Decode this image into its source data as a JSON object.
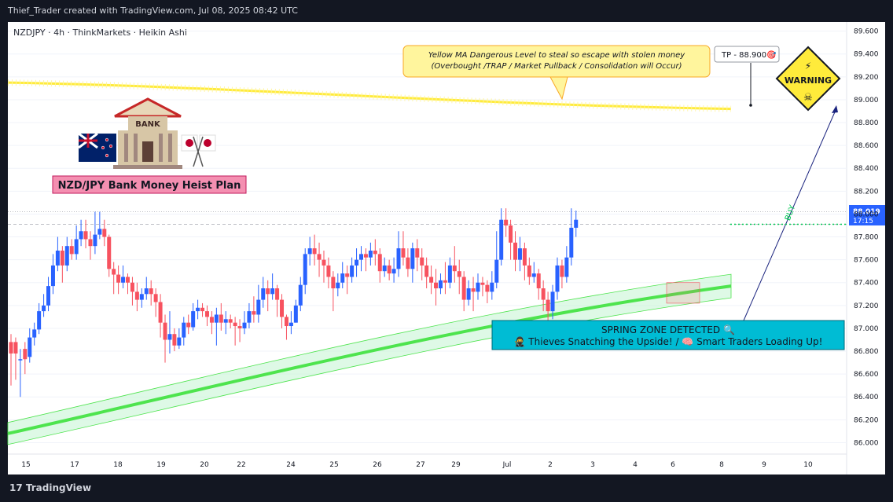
{
  "header": {
    "title": "Thief_Trader created with TradingView.com, Jul 08, 2025 08:42 UTC"
  },
  "footer": {
    "logo_text": "TradingView"
  },
  "chart_data": {
    "type": "candlestick",
    "symbol_line": "NZDJPY · 4h · ThinkMarkets · Heikin Ashi",
    "ylim": [
      85.9,
      89.68
    ],
    "y_ticks": [
      "89.600",
      "89.400",
      "89.200",
      "89.000",
      "88.800",
      "88.600",
      "88.400",
      "88.200",
      "88.000",
      "87.800",
      "87.600",
      "87.400",
      "87.200",
      "87.000",
      "86.800",
      "86.600",
      "86.400",
      "86.200",
      "86.000"
    ],
    "x_ticks": [
      "15",
      "17",
      "18",
      "19",
      "20",
      "22",
      "24",
      "25",
      "26",
      "27",
      "29",
      "Jul",
      "2",
      "3",
      "4",
      "6",
      "8",
      "9",
      "10"
    ],
    "last_price": "88.019",
    "countdown": "17:15",
    "tp_label": "TP - 88.900🎯",
    "tp_price": 88.9,
    "buy_label": "BUY",
    "buy_level": 87.91,
    "annotation": "Yellow MA Dangerous Level to steal so escape with stolen money",
    "annotation2": "(Overbought /TRAP / Market Pullback / Consolidation will Occur)",
    "plan_label": "NZD/JPY Bank Money Heist Plan",
    "bank_label": "BANK",
    "warning_label": "WARNING",
    "spring_line1": "SPRING ZONE DETECTED 🔍",
    "spring_line2": "🥷 Thieves Snatching the Upside! / 🧠 Smart Traders Loading Up!",
    "colors": {
      "up": "#2962ff",
      "down": "#f7525f",
      "ma": "#ffeb3b",
      "trend": "#4ee44e",
      "spring": "#00bcd4",
      "bg": "#ffffff"
    },
    "yellow_ma": {
      "start": 89.15,
      "end": 88.92
    },
    "green_ma": {
      "start": 86.08,
      "end": 87.37
    },
    "candles": [
      [
        86.88,
        86.78,
        86.95,
        86.5
      ],
      [
        86.88,
        86.78,
        86.92,
        86.55
      ],
      [
        86.72,
        86.73,
        86.82,
        86.4
      ],
      [
        86.82,
        86.73,
        86.88,
        86.6
      ],
      [
        86.75,
        86.92,
        87.0,
        86.7
      ],
      [
        86.92,
        86.99,
        87.05,
        86.85
      ],
      [
        86.99,
        87.15,
        87.22,
        86.95
      ],
      [
        87.15,
        87.2,
        87.3,
        87.1
      ],
      [
        87.2,
        87.37,
        87.45,
        87.15
      ],
      [
        87.37,
        87.55,
        87.65,
        87.3
      ],
      [
        87.55,
        87.68,
        87.8,
        87.5
      ],
      [
        87.68,
        87.55,
        87.72,
        87.4
      ],
      [
        87.55,
        87.72,
        87.8,
        87.5
      ],
      [
        87.72,
        87.65,
        87.78,
        87.6
      ],
      [
        87.65,
        87.78,
        87.9,
        87.6
      ],
      [
        87.78,
        87.85,
        87.95,
        87.72
      ],
      [
        87.85,
        87.78,
        87.95,
        87.7
      ],
      [
        87.78,
        87.72,
        87.85,
        87.6
      ],
      [
        87.72,
        87.82,
        88.02,
        87.65
      ],
      [
        87.82,
        87.87,
        88.02,
        87.78
      ],
      [
        87.87,
        87.8,
        87.95,
        87.72
      ],
      [
        87.8,
        87.52,
        87.82,
        87.45
      ],
      [
        87.52,
        87.47,
        87.58,
        87.3
      ],
      [
        87.47,
        87.4,
        87.55,
        87.3
      ],
      [
        87.4,
        87.45,
        87.55,
        87.35
      ],
      [
        87.45,
        87.4,
        87.48,
        87.3
      ],
      [
        87.4,
        87.32,
        87.45,
        87.2
      ],
      [
        87.32,
        87.25,
        87.4,
        87.15
      ],
      [
        87.25,
        87.3,
        87.35,
        87.18
      ],
      [
        87.3,
        87.35,
        87.45,
        87.25
      ],
      [
        87.35,
        87.3,
        87.42,
        87.2
      ],
      [
        87.3,
        87.23,
        87.35,
        87.1
      ],
      [
        87.23,
        87.05,
        87.3,
        86.92
      ],
      [
        87.05,
        86.9,
        87.12,
        86.7
      ],
      [
        86.9,
        86.95,
        87.15,
        86.78
      ],
      [
        86.95,
        86.85,
        87.0,
        86.8
      ],
      [
        86.85,
        86.92,
        87.0,
        86.82
      ],
      [
        86.92,
        87.05,
        87.1,
        86.85
      ],
      [
        87.05,
        87.01,
        87.12,
        86.95
      ],
      [
        87.01,
        87.15,
        87.22,
        86.98
      ],
      [
        87.15,
        87.18,
        87.25,
        87.08
      ],
      [
        87.18,
        87.15,
        87.22,
        87.1
      ],
      [
        87.15,
        87.1,
        87.2,
        87.02
      ],
      [
        87.1,
        87.05,
        87.15,
        86.95
      ],
      [
        87.05,
        87.12,
        87.18,
        86.85
      ],
      [
        87.12,
        87.05,
        87.22,
        86.98
      ],
      [
        87.05,
        87.08,
        87.15,
        86.95
      ],
      [
        87.08,
        87.05,
        87.12,
        87.0
      ],
      [
        87.05,
        87.02,
        87.1,
        86.85
      ],
      [
        87.02,
        87.0,
        87.08,
        86.88
      ],
      [
        87.0,
        87.05,
        87.15,
        86.95
      ],
      [
        87.05,
        87.15,
        87.22,
        87.0
      ],
      [
        87.15,
        87.12,
        87.28,
        87.05
      ],
      [
        87.12,
        87.25,
        87.38,
        87.05
      ],
      [
        87.25,
        87.35,
        87.45,
        87.18
      ],
      [
        87.35,
        87.3,
        87.42,
        87.15
      ],
      [
        87.3,
        87.35,
        87.48,
        87.25
      ],
      [
        87.35,
        87.25,
        87.38,
        87.1
      ],
      [
        87.25,
        87.1,
        87.3,
        87.0
      ],
      [
        87.1,
        87.02,
        87.12,
        86.9
      ],
      [
        87.02,
        87.05,
        87.15,
        86.95
      ],
      [
        87.05,
        87.2,
        87.25,
        87.05
      ],
      [
        87.2,
        87.38,
        87.45,
        87.15
      ],
      [
        87.38,
        87.65,
        87.7,
        87.3
      ],
      [
        87.65,
        87.7,
        87.8,
        87.55
      ],
      [
        87.7,
        87.65,
        87.82,
        87.55
      ],
      [
        87.65,
        87.6,
        87.75,
        87.45
      ],
      [
        87.6,
        87.55,
        87.68,
        87.4
      ],
      [
        87.55,
        87.45,
        87.62,
        87.35
      ],
      [
        87.45,
        87.35,
        87.5,
        87.15
      ],
      [
        87.35,
        87.4,
        87.48,
        87.28
      ],
      [
        87.4,
        87.48,
        87.58,
        87.35
      ],
      [
        87.48,
        87.45,
        87.55,
        87.3
      ],
      [
        87.45,
        87.55,
        87.62,
        87.4
      ],
      [
        87.55,
        87.6,
        87.7,
        87.45
      ],
      [
        87.6,
        87.65,
        87.72,
        87.5
      ],
      [
        87.65,
        87.62,
        87.7,
        87.5
      ],
      [
        87.62,
        87.68,
        87.75,
        87.55
      ],
      [
        87.68,
        87.65,
        87.78,
        87.55
      ],
      [
        87.65,
        87.5,
        87.7,
        87.4
      ],
      [
        87.5,
        87.55,
        87.62,
        87.45
      ],
      [
        87.55,
        87.48,
        87.6,
        87.42
      ],
      [
        87.48,
        87.52,
        87.62,
        87.4
      ],
      [
        87.52,
        87.7,
        87.85,
        87.45
      ],
      [
        87.7,
        87.62,
        87.85,
        87.55
      ],
      [
        87.62,
        87.52,
        87.7,
        87.45
      ],
      [
        87.52,
        87.7,
        87.75,
        87.4
      ],
      [
        87.7,
        87.62,
        87.78,
        87.5
      ],
      [
        87.62,
        87.55,
        87.7,
        87.42
      ],
      [
        87.55,
        87.45,
        87.62,
        87.35
      ],
      [
        87.45,
        87.4,
        87.55,
        87.3
      ],
      [
        87.4,
        87.35,
        87.52,
        87.2
      ],
      [
        87.35,
        87.42,
        87.48,
        87.3
      ],
      [
        87.42,
        87.4,
        87.58,
        87.3
      ],
      [
        87.4,
        87.55,
        87.62,
        87.35
      ],
      [
        87.55,
        87.5,
        87.72,
        87.4
      ],
      [
        87.5,
        87.45,
        87.6,
        87.3
      ],
      [
        87.45,
        87.25,
        87.5,
        87.15
      ],
      [
        87.25,
        87.35,
        87.42,
        87.2
      ],
      [
        87.35,
        87.32,
        87.45,
        87.15
      ],
      [
        87.32,
        87.4,
        87.48,
        87.25
      ],
      [
        87.4,
        87.38,
        87.45,
        87.28
      ],
      [
        87.38,
        87.32,
        87.42,
        87.22
      ],
      [
        87.32,
        87.4,
        87.5,
        87.25
      ],
      [
        87.4,
        87.6,
        87.85,
        87.35
      ],
      [
        87.6,
        87.95,
        88.05,
        87.55
      ],
      [
        87.95,
        87.9,
        88.05,
        87.8
      ],
      [
        87.9,
        87.75,
        87.95,
        87.6
      ],
      [
        87.75,
        87.6,
        87.85,
        87.5
      ],
      [
        87.6,
        87.7,
        87.8,
        87.5
      ],
      [
        87.7,
        87.55,
        87.75,
        87.42
      ],
      [
        87.55,
        87.45,
        87.62,
        87.38
      ],
      [
        87.45,
        87.48,
        87.58,
        87.4
      ],
      [
        87.48,
        87.35,
        87.52,
        87.25
      ],
      [
        87.35,
        87.25,
        87.42,
        87.15
      ],
      [
        87.25,
        87.15,
        87.32,
        87.05
      ],
      [
        87.15,
        87.32,
        87.38,
        87.08
      ],
      [
        87.32,
        87.55,
        87.62,
        87.25
      ],
      [
        87.55,
        87.45,
        87.6,
        87.35
      ],
      [
        87.45,
        87.62,
        87.72,
        87.4
      ],
      [
        87.62,
        87.88,
        88.05,
        87.55
      ],
      [
        87.88,
        87.95,
        88.03,
        87.8
      ]
    ]
  }
}
